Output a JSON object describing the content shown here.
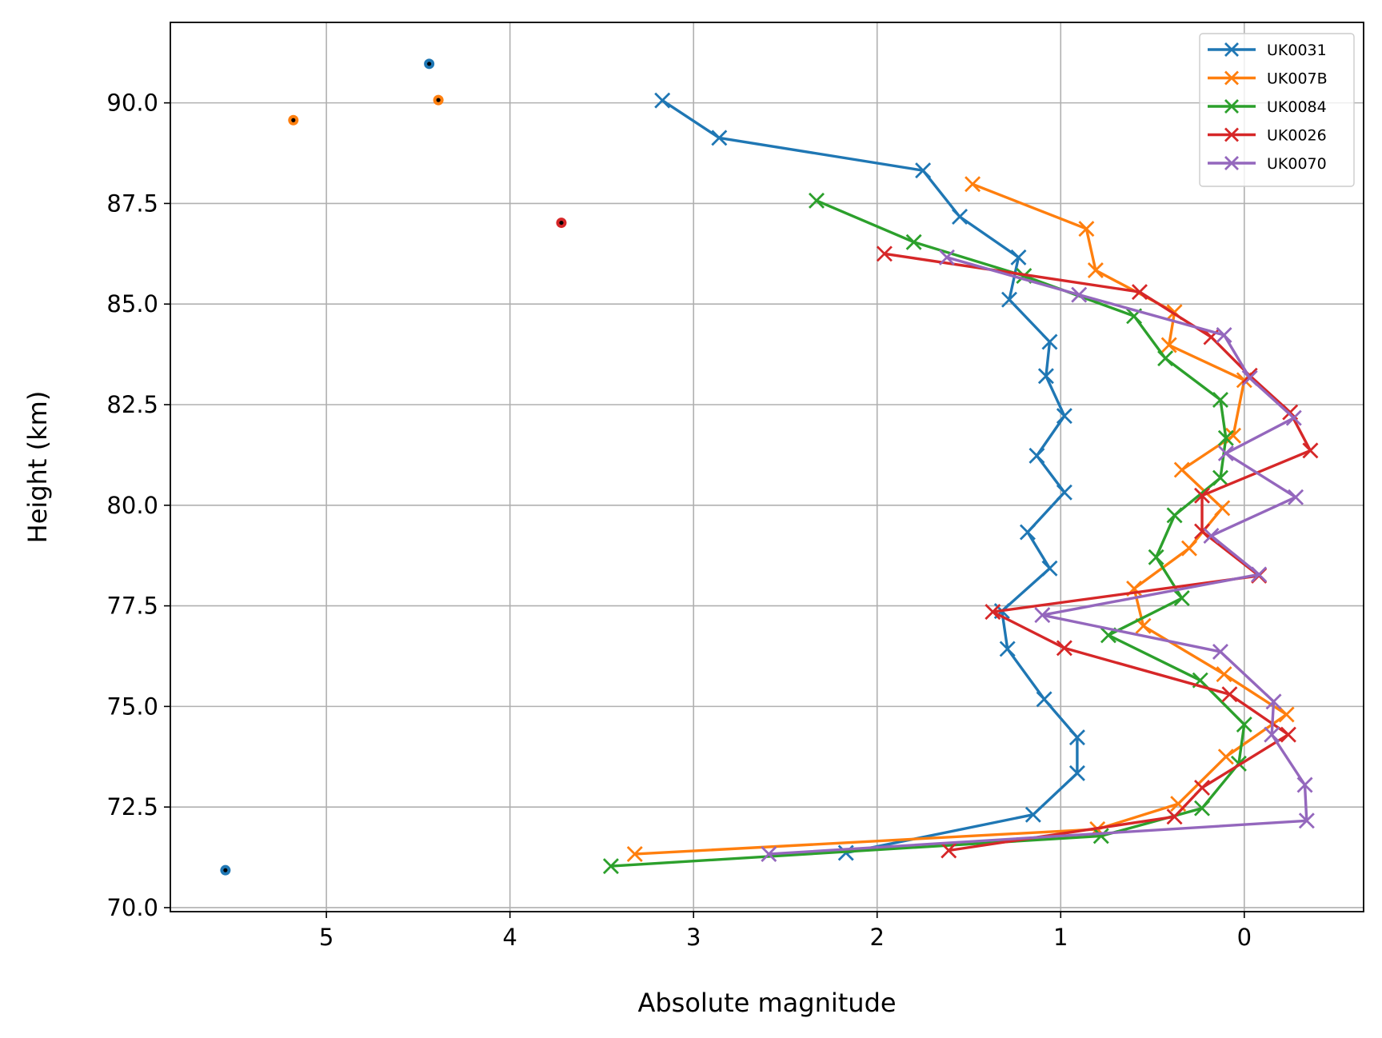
{
  "chart_data": {
    "type": "line",
    "title": "",
    "xlabel": "Absolute magnitude",
    "ylabel": "Height (km)",
    "xlim": [
      5.85,
      -0.65
    ],
    "x_inverted": true,
    "ylim": [
      69.9,
      92.0
    ],
    "xticks": [
      5,
      4,
      3,
      2,
      1,
      0
    ],
    "xtick_labels": [
      "5",
      "4",
      "3",
      "2",
      "1",
      "0"
    ],
    "yticks": [
      70.0,
      72.5,
      75.0,
      77.5,
      80.0,
      82.5,
      85.0,
      87.5,
      90.0
    ],
    "ytick_labels": [
      "70.0",
      "72.5",
      "75.0",
      "77.5",
      "80.0",
      "82.5",
      "85.0",
      "87.5",
      "90.0"
    ],
    "grid": true,
    "legend_position": "top-right",
    "series": [
      {
        "name": "UK0031",
        "color": "#1f77b4",
        "marker": "x",
        "points": [
          [
            3.17,
            90.06
          ],
          [
            2.86,
            89.13
          ],
          [
            1.75,
            88.32
          ],
          [
            1.55,
            87.17
          ],
          [
            1.23,
            86.16
          ],
          [
            1.28,
            85.11
          ],
          [
            1.06,
            84.06
          ],
          [
            1.08,
            83.21
          ],
          [
            0.98,
            82.22
          ],
          [
            1.13,
            81.23
          ],
          [
            0.98,
            80.32
          ],
          [
            1.18,
            79.33
          ],
          [
            1.06,
            78.43
          ],
          [
            1.32,
            77.37
          ],
          [
            1.29,
            76.43
          ],
          [
            1.09,
            75.18
          ],
          [
            0.91,
            74.23
          ],
          [
            0.91,
            73.34
          ],
          [
            1.15,
            72.31
          ],
          [
            2.17,
            71.36
          ]
        ]
      },
      {
        "name": "UK007B",
        "color": "#ff7f0e",
        "marker": "x",
        "points": [
          [
            1.48,
            87.98
          ],
          [
            0.86,
            86.87
          ],
          [
            0.81,
            85.84
          ],
          [
            0.38,
            84.8
          ],
          [
            0.41,
            83.98
          ],
          [
            0.0,
            83.11
          ],
          [
            0.06,
            81.73
          ],
          [
            0.34,
            80.88
          ],
          [
            0.12,
            79.93
          ],
          [
            0.3,
            78.93
          ],
          [
            0.6,
            77.93
          ],
          [
            0.55,
            77.0
          ],
          [
            0.11,
            75.8
          ],
          [
            -0.23,
            74.8
          ],
          [
            0.1,
            73.75
          ],
          [
            0.36,
            72.58
          ],
          [
            0.8,
            71.95
          ],
          [
            3.32,
            71.33
          ]
        ]
      },
      {
        "name": "UK0084",
        "color": "#2ca02c",
        "marker": "x",
        "points": [
          [
            2.33,
            87.57
          ],
          [
            1.8,
            86.54
          ],
          [
            1.2,
            85.7
          ],
          [
            0.6,
            84.7
          ],
          [
            0.43,
            83.65
          ],
          [
            0.13,
            82.62
          ],
          [
            0.1,
            81.67
          ],
          [
            0.13,
            80.68
          ],
          [
            0.38,
            79.75
          ],
          [
            0.48,
            78.71
          ],
          [
            0.34,
            77.69
          ],
          [
            0.74,
            76.77
          ],
          [
            0.24,
            75.65
          ],
          [
            0.0,
            74.55
          ],
          [
            0.03,
            73.58
          ],
          [
            0.23,
            72.47
          ],
          [
            0.78,
            71.78
          ],
          [
            3.45,
            71.03
          ]
        ]
      },
      {
        "name": "UK0026",
        "color": "#d62728",
        "marker": "x",
        "points": [
          [
            1.96,
            86.25
          ],
          [
            0.57,
            85.3
          ],
          [
            0.18,
            84.18
          ],
          [
            -0.03,
            83.22
          ],
          [
            -0.25,
            82.31
          ],
          [
            -0.36,
            81.36
          ],
          [
            0.23,
            80.24
          ],
          [
            0.23,
            79.35
          ],
          [
            -0.08,
            78.25
          ],
          [
            1.37,
            77.35
          ],
          [
            0.98,
            76.45
          ],
          [
            0.08,
            75.3
          ],
          [
            -0.24,
            74.3
          ],
          [
            0.23,
            72.98
          ],
          [
            0.38,
            72.26
          ],
          [
            1.61,
            71.42
          ]
        ]
      },
      {
        "name": "UK0070",
        "color": "#9467bd",
        "marker": "x",
        "points": [
          [
            1.62,
            86.16
          ],
          [
            0.9,
            85.23
          ],
          [
            0.11,
            84.23
          ],
          [
            -0.03,
            83.16
          ],
          [
            -0.27,
            82.17
          ],
          [
            0.1,
            81.29
          ],
          [
            -0.28,
            80.2
          ],
          [
            0.18,
            79.24
          ],
          [
            -0.08,
            78.28
          ],
          [
            1.1,
            77.27
          ],
          [
            0.13,
            76.36
          ],
          [
            -0.16,
            75.12
          ],
          [
            -0.15,
            74.3
          ],
          [
            -0.33,
            73.05
          ],
          [
            -0.34,
            72.16
          ],
          [
            2.59,
            71.33
          ]
        ]
      }
    ],
    "isolated_points": [
      {
        "x": 4.44,
        "y": 90.97,
        "color": "#1f77b4"
      },
      {
        "x": 4.39,
        "y": 90.07,
        "color": "#ff7f0e"
      },
      {
        "x": 5.18,
        "y": 89.57,
        "color": "#ff7f0e"
      },
      {
        "x": 3.72,
        "y": 87.02,
        "color": "#d62728"
      },
      {
        "x": 5.55,
        "y": 70.93,
        "color": "#1f77b4"
      }
    ]
  }
}
